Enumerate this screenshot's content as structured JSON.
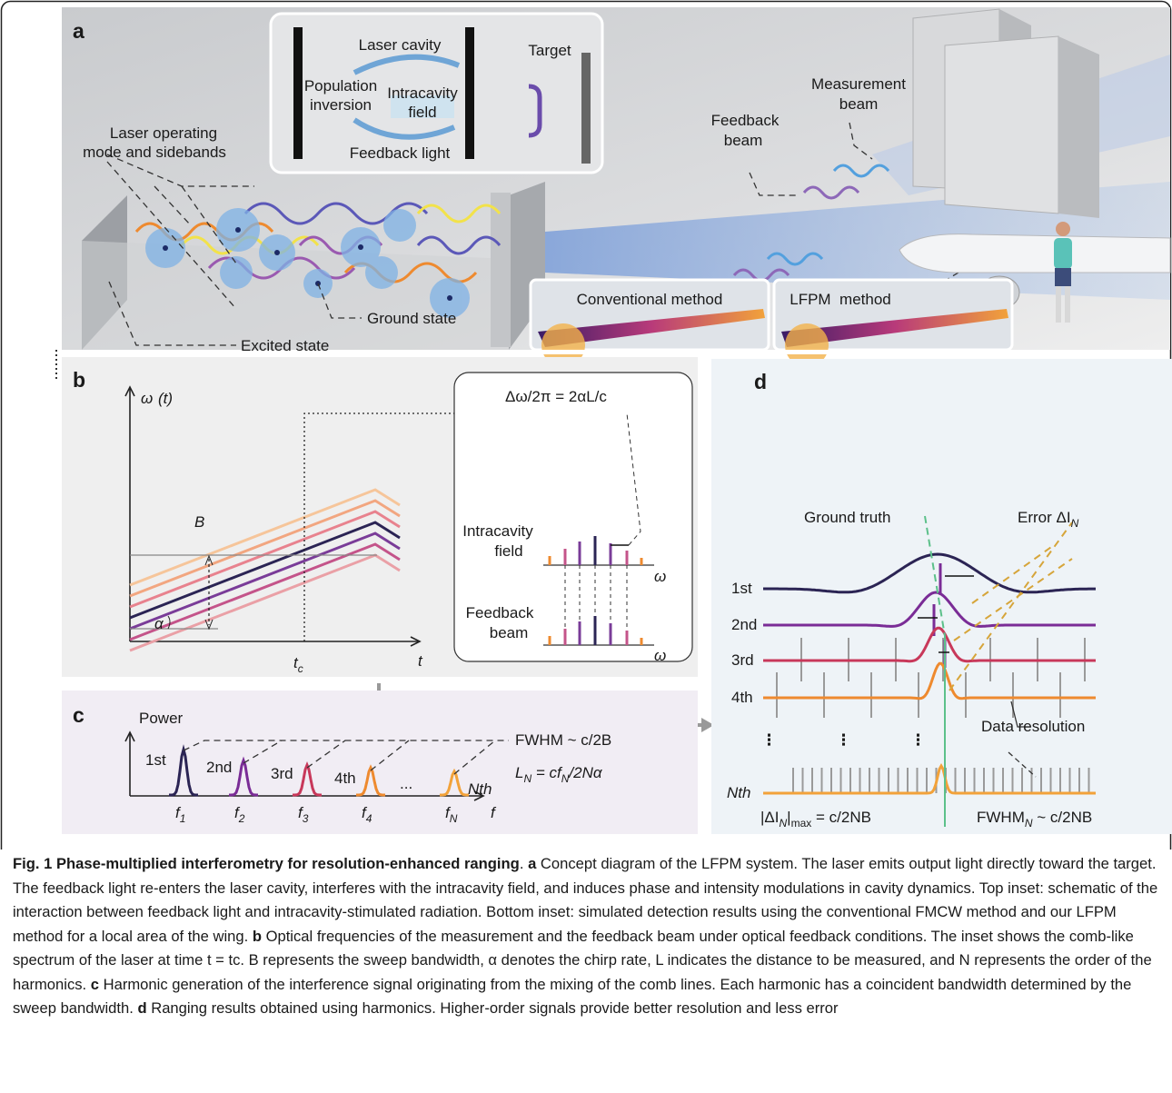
{
  "panel_a": {
    "label": "a",
    "inset": {
      "laser_cavity": "Laser cavity",
      "population_inversion": [
        "Population",
        "inversion"
      ],
      "intracavity_field": [
        "Intracavity",
        "field"
      ],
      "feedback_light": "Feedback light",
      "target": "Target"
    },
    "laser_modes": [
      "Laser operating",
      "mode and sidebands"
    ],
    "ground_state": "Ground state",
    "excited_state": "Excited state",
    "feedback_beam": [
      "Feedback",
      "beam"
    ],
    "measurement_beam": [
      "Measurement",
      "beam"
    ],
    "conventional_method": "Conventional method",
    "lfpm_method": "LFPM  method"
  },
  "panel_b": {
    "label": "b",
    "y_axis": {
      "base": "ω",
      "rest": " (t)"
    },
    "bandwidth": "B",
    "chirp": "α",
    "t_c": {
      "base": "t",
      "sub": "c"
    },
    "x_axis": "t",
    "inset": {
      "formula": "Δω/2π = 2αL/c",
      "intracavity_field": [
        "Intracavity",
        "field"
      ],
      "feedback_beam": [
        "Feedback",
        "beam"
      ],
      "omega_top": "ω",
      "omega_bottom": "ω"
    }
  },
  "panel_c": {
    "label": "c",
    "y_axis": "Power",
    "harmonics": [
      "1st",
      "2nd",
      "3rd",
      "4th",
      "...",
      "Nth"
    ],
    "fwhm": "FWHM ~ c/2B",
    "ln": {
      "l": "L",
      "n1": "N",
      "eq": " = cf",
      "n2": "N",
      "rest": "/2Nα"
    },
    "freqs": [
      {
        "base": "f",
        "sub": "1"
      },
      {
        "base": "f",
        "sub": "2"
      },
      {
        "base": "f",
        "sub": "3"
      },
      {
        "base": "f",
        "sub": "4"
      },
      {
        "base": "f",
        "sub": "N"
      }
    ],
    "x_axis": "f"
  },
  "panel_d": {
    "label": "d",
    "ground_truth": "Ground truth",
    "error": {
      "base": "Error ΔI",
      "sub": "N"
    },
    "rows": [
      "1st",
      "2nd",
      "3rd",
      "4th",
      "Nth"
    ],
    "ellipsis": [
      "⋮",
      "⋮",
      "⋮"
    ],
    "data_resolution": "Data resolution",
    "max_error": {
      "pre": "|ΔI",
      "sub1": "N",
      "mid": "|",
      "sub2": "max",
      "post": " = c/2NB"
    },
    "fwhm_n": {
      "pre": "FWHM",
      "sub": "N",
      "post": " ~ c/2NB"
    }
  },
  "caption": {
    "title": "Fig. 1 Phase-multiplied interferometry for resolution-enhanced ranging",
    "title_end": ".",
    "parts": [
      {
        "label": "a",
        "text": " Concept diagram of the LFPM system. The laser emits output light directly toward the target. The feedback light re-enters the laser cavity, interferes with the intracavity field, and induces phase and intensity modulations in cavity dynamics. Top inset: schematic of the interaction between feedback light and intracavity-stimulated radiation. Bottom inset: simulated detection results using the conventional FMCW method and our LFPM method for a local area of the wing. "
      },
      {
        "label": "b",
        "text": " Optical frequencies of the measurement and the feedback beam under optical feedback conditions. The inset shows the comb-like spectrum of the laser at time t = tc. B represents the sweep bandwidth, α denotes the chirp rate, L indicates the distance to be measured, and N represents the order of the harmonics. "
      },
      {
        "label": "c",
        "text": " Harmonic generation of the interference signal originating from the mixing of the comb lines. Each harmonic has a coincident bandwidth determined by the sweep bandwidth. "
      },
      {
        "label": "d",
        "text": " Ranging results obtained using harmonics. Higher-order signals provide better resolution and less error"
      }
    ]
  }
}
